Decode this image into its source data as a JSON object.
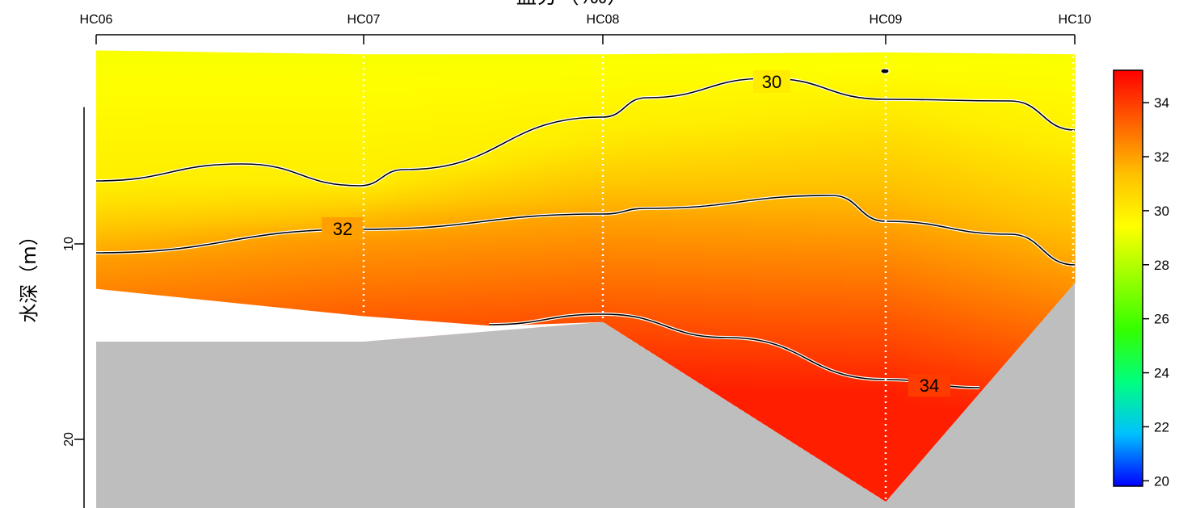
{
  "chart_data": {
    "type": "heatmap",
    "title": "盐分（‰）",
    "ylabel": "水深（m）",
    "xlabel": "",
    "y_axis": {
      "reversed": true,
      "ylim": [
        0,
        23.5
      ],
      "ticks": [
        10,
        20
      ]
    },
    "stations": [
      "HC06",
      "HC07",
      "HC08",
      "HC09",
      "HC10"
    ],
    "station_x": [
      0,
      1,
      2,
      3,
      4
    ],
    "bottom_depth": [
      15,
      15,
      14,
      23.2,
      12
    ],
    "surface_depth": [
      0.1,
      0.3,
      0.3,
      0.2,
      0.3
    ],
    "contours": [
      {
        "level": 30,
        "label": "30",
        "depth": [
          7.3,
          7,
          4.5,
          3.1,
          5.1
        ]
      },
      {
        "level": 32,
        "label": "32",
        "depth": [
          10.6,
          9.4,
          8.8,
          9.2,
          11.3
        ]
      },
      {
        "level": 34,
        "label": "34",
        "depth": [
          null,
          null,
          13.9,
          17.2,
          17.5
        ]
      }
    ],
    "colorbar": {
      "min": 19.8,
      "max": 35.2,
      "ticks": [
        20,
        22,
        24,
        26,
        28,
        30,
        32,
        34
      ],
      "palette": [
        "#0000ff",
        "#00c0ff",
        "#00ff80",
        "#33ff00",
        "#99ff00",
        "#ffff00",
        "#ffc000",
        "#ff6000",
        "#ff0000"
      ]
    },
    "colors": {
      "seabed": "#bebebe",
      "station_line": "#ffffff",
      "contour": "#000000"
    }
  }
}
